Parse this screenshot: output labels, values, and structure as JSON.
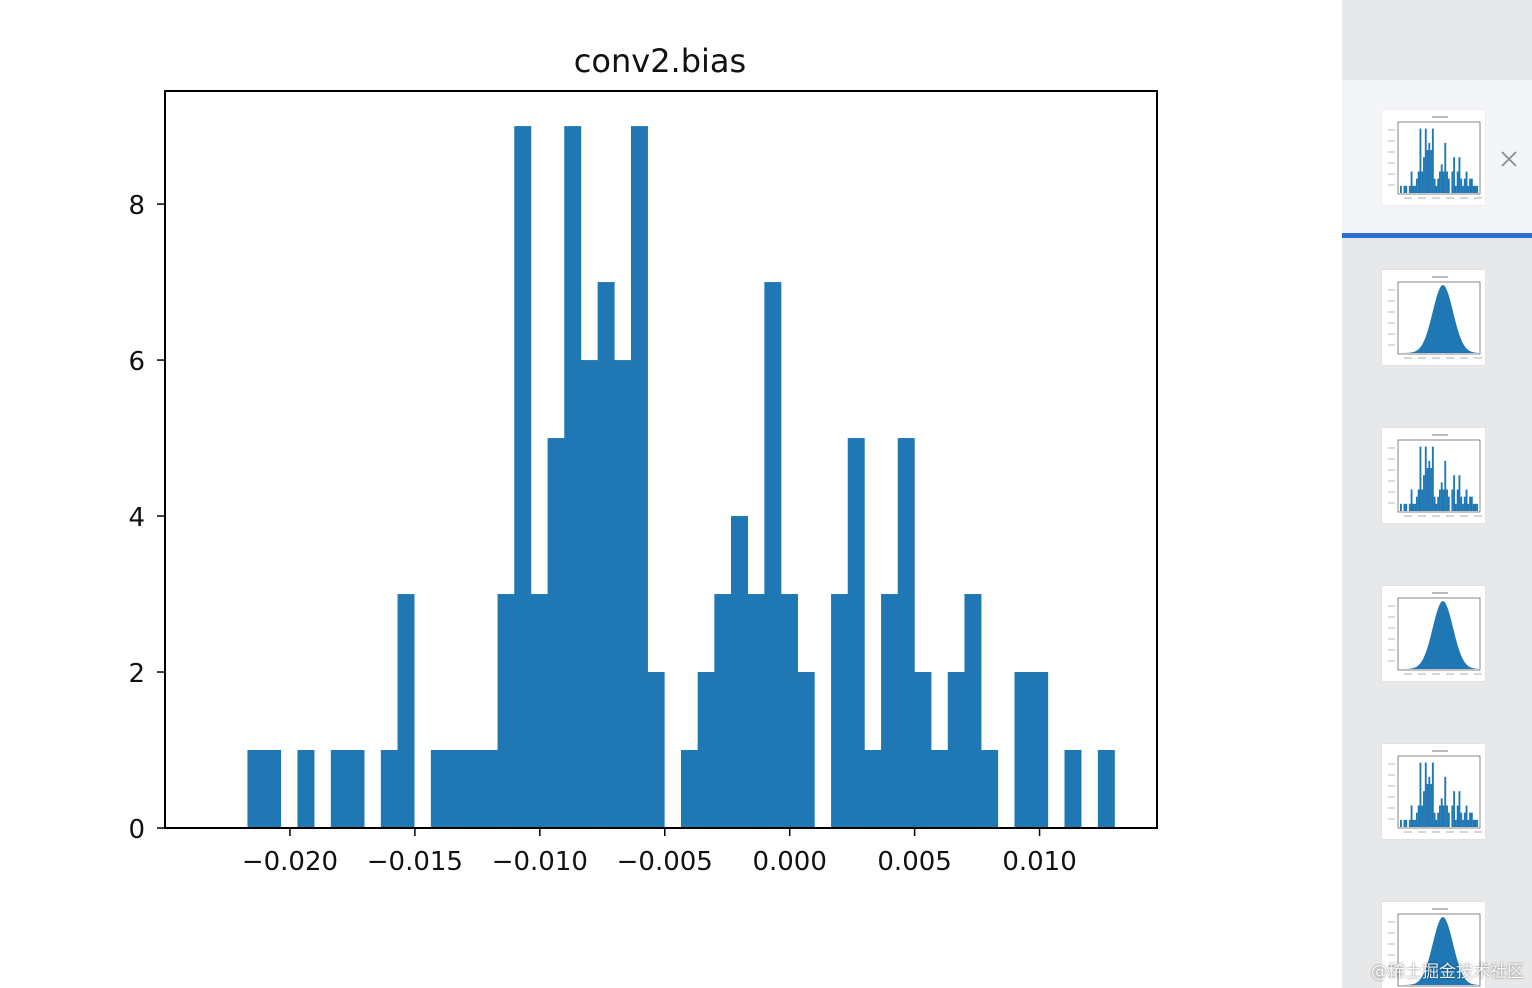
{
  "chart_data": {
    "type": "bar",
    "title": "conv2.bias",
    "xlabel": "",
    "ylabel": "",
    "bar_color": "#1f77b4",
    "bin_edges": [
      -0.0217,
      0.013
    ],
    "values": [
      1,
      1,
      0,
      1,
      0,
      1,
      1,
      0,
      1,
      3,
      0,
      1,
      1,
      1,
      1,
      3,
      9,
      3,
      5,
      9,
      6,
      7,
      6,
      9,
      2,
      0,
      1,
      2,
      3,
      4,
      3,
      7,
      3,
      2,
      0,
      3,
      5,
      1,
      3,
      5,
      2,
      1,
      2,
      3,
      1,
      0,
      2,
      2,
      0,
      1,
      0,
      1
    ],
    "xlim": [
      -0.025,
      0.0147
    ],
    "ylim": [
      0,
      9.45
    ],
    "xticks": [
      -0.02,
      -0.015,
      -0.01,
      -0.005,
      0.0,
      0.005,
      0.01
    ],
    "xtick_labels": [
      "−0.020",
      "−0.015",
      "−0.010",
      "−0.005",
      "0.000",
      "0.005",
      "0.010"
    ],
    "yticks": [
      0,
      2,
      4,
      6,
      8
    ],
    "ytick_labels": [
      "0",
      "2",
      "4",
      "6",
      "8"
    ],
    "grid": false
  },
  "sidebar": {
    "accent_color": "#2b6fd6",
    "thumbnails": [
      {
        "kind": "bell",
        "selected": false
      },
      {
        "kind": "spiky",
        "selected": true
      },
      {
        "kind": "bell",
        "selected": false
      },
      {
        "kind": "spiky",
        "selected": false
      },
      {
        "kind": "bell",
        "selected": false
      },
      {
        "kind": "spiky",
        "selected": false
      },
      {
        "kind": "bell",
        "selected": false
      }
    ],
    "close_icon": "close-icon"
  },
  "watermark": "@稀土掘金技术社区"
}
